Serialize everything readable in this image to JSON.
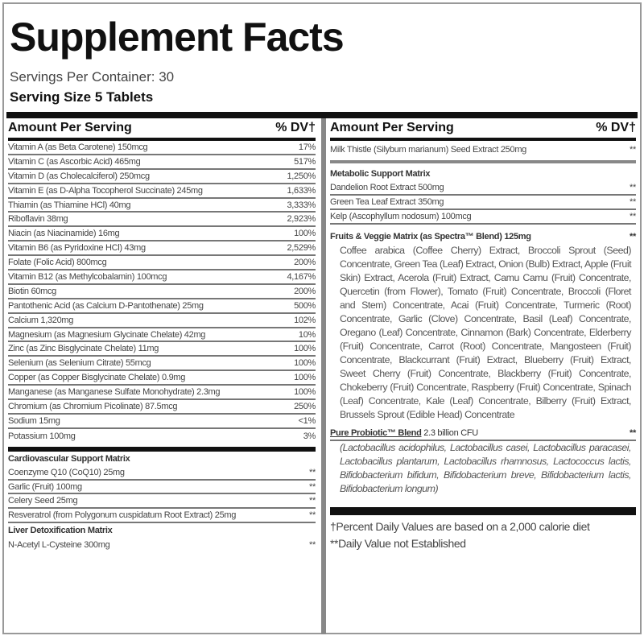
{
  "title": "Supplement Facts",
  "servings_per_container": "Servings Per Container: 30",
  "serving_size": "Serving Size 5 Tablets",
  "header": {
    "amount": "Amount Per Serving",
    "dv": "% DV†"
  },
  "left_rows": [
    {
      "name": "Vitamin A (as Beta Carotene) 150mcg",
      "dv": "17%"
    },
    {
      "name": "Vitamin C (as Ascorbic Acid) 465mg",
      "dv": "517%"
    },
    {
      "name": "Vitamin D (as Cholecalciferol) 250mcg",
      "dv": "1,250%"
    },
    {
      "name": "Vitamin E (as D-Alpha Tocopherol Succinate) 245mg",
      "dv": "1,633%"
    },
    {
      "name": "Thiamin (as Thiamine HCl) 40mg",
      "dv": "3,333%"
    },
    {
      "name": "Riboflavin 38mg",
      "dv": "2,923%"
    },
    {
      "name": "Niacin (as Niacinamide) 16mg",
      "dv": "100%"
    },
    {
      "name": "Vitamin B6 (as Pyridoxine HCl) 43mg",
      "dv": "2,529%"
    },
    {
      "name": "Folate (Folic Acid) 800mcg",
      "dv": "200%"
    },
    {
      "name": "Vitamin B12 (as Methylcobalamin) 100mcg",
      "dv": "4,167%"
    },
    {
      "name": "Biotin 60mcg",
      "dv": "200%"
    },
    {
      "name": "Pantothenic Acid (as Calcium D-Pantothenate) 25mg",
      "dv": "500%"
    },
    {
      "name": "Calcium 1,320mg",
      "dv": "102%"
    },
    {
      "name": "Magnesium (as Magnesium Glycinate Chelate) 42mg",
      "dv": "10%"
    },
    {
      "name": "Zinc (as Zinc Bisglycinate Chelate) 11mg",
      "dv": "100%"
    },
    {
      "name": "Selenium (as Selenium Citrate) 55mcg",
      "dv": "100%"
    },
    {
      "name": "Copper (as Copper Bisglycinate Chelate) 0.9mg",
      "dv": "100%"
    },
    {
      "name": "Manganese (as Manganese Sulfate Monohydrate) 2.3mg",
      "dv": "100%"
    },
    {
      "name": "Chromium (as Chromium Picolinate) 87.5mcg",
      "dv": "250%"
    },
    {
      "name": "Sodium 15mg",
      "dv": "<1%"
    },
    {
      "name": "Potassium 100mg",
      "dv": "3%"
    }
  ],
  "cardio": {
    "title": "Cardiovascular Support Matrix",
    "rows": [
      {
        "name": "Coenzyme Q10 (CoQ10) 25mg",
        "dv": "**"
      },
      {
        "name": "Garlic (Fruit) 100mg",
        "dv": "**"
      },
      {
        "name": "Celery Seed 25mg",
        "dv": "**"
      },
      {
        "name": "Resveratrol (from Polygonum cuspidatum Root Extract) 25mg",
        "dv": "**"
      }
    ]
  },
  "liver": {
    "title": "Liver Detoxification Matrix",
    "rows": [
      {
        "name": "N-Acetyl L-Cysteine 300mg",
        "dv": "**"
      }
    ]
  },
  "right_top": {
    "name": "Milk Thistle (Silybum marianum) Seed Extract 250mg",
    "dv": "**"
  },
  "metabolic": {
    "title": "Metabolic Support Matrix",
    "rows": [
      {
        "name": "Dandelion Root Extract 500mg",
        "dv": "**"
      },
      {
        "name": "Green Tea Leaf Extract 350mg",
        "dv": "**"
      },
      {
        "name": "Kelp (Ascophyllum nodosum) 100mcg",
        "dv": "**"
      }
    ]
  },
  "fruits": {
    "title": "Fruits & Veggie Matrix (as Spectra™ Blend) 125mg",
    "dv": "**",
    "text": "Coffee arabica (Coffee Cherry) Extract, Broccoli Sprout (Seed) Concentrate, Green Tea (Leaf) Extract, Onion (Bulb) Extract, Apple (Fruit Skin) Extract, Acerola (Fruit) Extract, Camu Camu (Fruit) Concentrate, Quercetin (from Flower), Tomato (Fruit) Concentrate, Broccoli (Floret and Stem) Concentrate, Acai (Fruit) Concentrate, Turmeric (Root) Concentrate, Garlic (Clove) Concentrate, Basil (Leaf) Concentrate, Oregano (Leaf) Concentrate, Cinnamon (Bark) Concentrate, Elderberry (Fruit) Concentrate, Carrot (Root) Concentrate, Mangosteen (Fruit) Concentrate, Blackcurrant (Fruit) Extract, Blueberry (Fruit) Extract, Sweet Cherry (Fruit) Concentrate, Blackberry (Fruit) Concentrate, Chokeberry (Fruit) Concentrate, Raspberry (Fruit) Concentrate, Spinach (Leaf) Concentrate, Kale (Leaf) Concentrate, Bilberry (Fruit) Extract, Brussels Sprout (Edible Head) Concentrate"
  },
  "probiotic": {
    "title": "Pure Probiotic™ Blend",
    "amount": "2.3 billion CFU",
    "dv": "**",
    "text": "(Lactobacillus acidophilus, Lactobacillus casei, Lactobacillus paracasei, Lactobacillus plantarum, Lactobacillus rhamnosus, Lactococcus lactis, Bifidobacterium bifidum, Bifidobacterium breve, Bifidobacterium lactis, Bifidobacterium longum)"
  },
  "footnotes": [
    "†Percent Daily Values are based on a 2,000 calorie diet",
    "**Daily Value not Established"
  ]
}
